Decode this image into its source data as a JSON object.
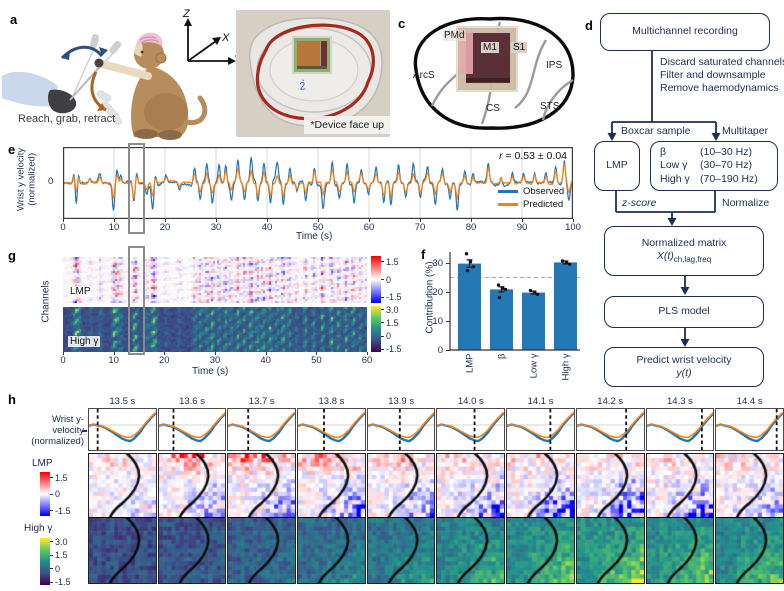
{
  "figure": {
    "panels": {
      "a": "a",
      "b": "b",
      "c": "c",
      "d": "d",
      "e": "e",
      "f": "f",
      "g": "g",
      "h": "h"
    }
  },
  "colors": {
    "observed": "#1f77b4",
    "predicted": "#ff7f0e",
    "bar": "#2478b4",
    "flowchart": "#1c2e52",
    "highlight": "#8c8c8c",
    "reference_line": "#aaaaaa",
    "error_bar": "#1a2440"
  },
  "panel_a": {
    "caption": "Reach, grab, retract",
    "axes": {
      "x": "X",
      "y": "Y",
      "z": "Z"
    }
  },
  "panel_b": {
    "caption": "*Device face up"
  },
  "panel_c": {
    "labels": {
      "pmd": "PMd",
      "m1": "M1",
      "s1": "S1",
      "arcs": "ArcS",
      "ips": "IPS",
      "cs": "CS",
      "sts": "STS"
    }
  },
  "flow": {
    "recording": "Multichannel recording",
    "steps": [
      "Discard saturated channels",
      "Filter and downsample",
      "Remove haemodynamics"
    ],
    "boxcar": "Boxcar sample",
    "multitaper": "Multitaper",
    "lmp": "LMP",
    "bands": [
      {
        "name": "β",
        "range": "(10–30 Hz)"
      },
      {
        "name": "Low γ",
        "range": "(30–70 Hz)"
      },
      {
        "name": "High γ",
        "range": "(70–190 Hz)"
      }
    ],
    "zscore": "z-score",
    "normalize": "Normalize",
    "matrix_line1": "Normalized matrix",
    "matrix_var": "X(t)",
    "matrix_sub": "ch,lag,freq",
    "pls": "PLS model",
    "predict_line1": "Predict wrist velocity",
    "predict_var": "y(t)"
  },
  "chart_data": [
    {
      "id": "e",
      "type": "line",
      "ylabel_lines": [
        "Wrist y velocity",
        "(normalized)"
      ],
      "xlabel": "Time (s)",
      "xlim": [
        0,
        100
      ],
      "xticks": [
        0,
        10,
        20,
        30,
        40,
        50,
        60,
        70,
        80,
        90,
        100
      ],
      "yticks": [
        0
      ],
      "ylim": [
        -1.9,
        1.9
      ],
      "grid": "vertical",
      "annotation_prefix": "r",
      "annotation_rest": " = 0.53 ± 0.04",
      "legend_position": "lower right inside",
      "series": [
        {
          "name": "Observed",
          "color": "#1f77b4"
        },
        {
          "name": "Predicted",
          "color": "#ff7f0e"
        }
      ],
      "highlight_window_s": [
        13.0,
        15.6
      ],
      "noise_seed": 42,
      "spikes": [
        [
          2.2,
          0.75,
          0.45
        ],
        [
          2.6,
          -1.3,
          -0.6
        ],
        [
          3.0,
          0.7,
          0.4
        ],
        [
          5.3,
          0.3,
          0.2
        ],
        [
          7.2,
          0.55,
          0.35
        ],
        [
          9.9,
          -1.55,
          -0.85
        ],
        [
          10.6,
          0.8,
          0.5
        ],
        [
          11.3,
          0.5,
          0.3
        ],
        [
          13.9,
          -1.25,
          -0.95
        ],
        [
          14.4,
          0.5,
          0.35
        ],
        [
          16.4,
          -0.6,
          -0.35
        ],
        [
          17.6,
          -1.45,
          -0.8
        ],
        [
          18.1,
          0.6,
          0.3
        ],
        [
          20.2,
          0.35,
          0.2
        ],
        [
          22.8,
          -0.4,
          -0.25
        ],
        [
          25.8,
          0.85,
          0.55
        ],
        [
          26.9,
          -0.9,
          -0.5
        ],
        [
          28.2,
          1.0,
          0.6
        ],
        [
          29.3,
          -1.15,
          -0.6
        ],
        [
          30.6,
          0.95,
          0.55
        ],
        [
          31.9,
          1.1,
          0.65
        ],
        [
          33.0,
          -0.85,
          -0.5
        ],
        [
          34.3,
          1.2,
          0.75
        ],
        [
          35.6,
          -1.0,
          -0.55
        ],
        [
          36.9,
          1.35,
          0.7
        ],
        [
          38.2,
          -1.2,
          -0.65
        ],
        [
          39.4,
          1.15,
          0.6
        ],
        [
          40.7,
          -1.3,
          -0.75
        ],
        [
          42.0,
          0.95,
          0.5
        ],
        [
          43.2,
          -1.35,
          -0.8
        ],
        [
          44.5,
          0.9,
          0.5
        ],
        [
          45.9,
          -0.55,
          -0.3
        ],
        [
          47.6,
          -1.05,
          -0.6
        ],
        [
          49.3,
          0.95,
          0.6
        ],
        [
          51.0,
          -1.25,
          -0.7
        ],
        [
          52.8,
          1.3,
          0.7
        ],
        [
          54.2,
          -0.95,
          -0.5
        ],
        [
          55.7,
          1.25,
          0.6
        ],
        [
          57.1,
          -1.1,
          -0.6
        ],
        [
          58.5,
          0.85,
          0.5
        ],
        [
          59.9,
          -0.7,
          -0.4
        ],
        [
          61.4,
          0.9,
          0.5
        ],
        [
          62.9,
          -1.2,
          -0.7
        ],
        [
          64.3,
          -1.4,
          -0.8
        ],
        [
          65.8,
          1.0,
          0.6
        ],
        [
          67.2,
          -0.85,
          -0.5
        ],
        [
          68.7,
          1.1,
          0.6
        ],
        [
          70.1,
          -1.0,
          -0.6
        ],
        [
          71.5,
          0.95,
          0.5
        ],
        [
          73.0,
          -1.3,
          -0.7
        ],
        [
          74.4,
          0.85,
          0.5
        ],
        [
          75.9,
          -0.9,
          -0.5
        ],
        [
          77.3,
          -1.5,
          -0.8
        ],
        [
          78.8,
          0.75,
          0.4
        ],
        [
          80.4,
          0.55,
          0.35
        ],
        [
          83.4,
          1.05,
          0.9
        ],
        [
          85.9,
          0.45,
          0.35
        ],
        [
          88.1,
          0.5,
          0.4
        ],
        [
          90.3,
          0.45,
          0.35
        ],
        [
          92.5,
          0.55,
          0.45
        ],
        [
          94.7,
          0.6,
          0.45
        ],
        [
          96.6,
          1.0,
          0.75
        ],
        [
          98.3,
          1.35,
          1.05
        ],
        [
          99.2,
          -0.95,
          -0.55
        ]
      ]
    },
    {
      "id": "f",
      "type": "bar",
      "ylabel": "Contribution (%)",
      "categories": [
        "LMP",
        "β",
        "Low γ",
        "High γ"
      ],
      "values": [
        29.8,
        20.9,
        19.8,
        30.2
      ],
      "errors": [
        1.3,
        0.9,
        0.5,
        0.5
      ],
      "points": [
        [
          33.2,
          30.4,
          28.7,
          27.4
        ],
        [
          22.4,
          21.3,
          20.9,
          18.1
        ],
        [
          20.5,
          19.9,
          19.2
        ],
        [
          30.7,
          30.1,
          29.6
        ]
      ],
      "point_jitter": [
        -3,
        1,
        4,
        -2
      ],
      "reference_line": 25,
      "yticks": [
        0,
        10,
        20,
        30
      ],
      "ylim": [
        0,
        34
      ]
    },
    {
      "id": "g",
      "type": "heatmap",
      "ylabel": "Channels",
      "xlabel": "Time (s)",
      "xlim": [
        0,
        60
      ],
      "xticks": [
        0,
        10,
        20,
        30,
        40,
        50,
        60
      ],
      "highlight_window_s": [
        13.0,
        15.6
      ],
      "rows": [
        {
          "label": "LMP",
          "colormap": "bwr",
          "seed": 7,
          "colorbar": {
            "range": [
              2,
              -2
            ],
            "ticks": [
              {
                "v": 1.5,
                "l": "1.5"
              },
              {
                "v": 0,
                "l": "0"
              },
              {
                "v": -1.5,
                "l": "-1.5"
              }
            ]
          }
        },
        {
          "label": "High γ",
          "colormap": "viridis",
          "seed": 13,
          "colorbar": {
            "range": [
              3.4,
              -1.8
            ],
            "ticks": [
              {
                "v": 3.0,
                "l": "3.0"
              },
              {
                "v": 1.5,
                "l": "1.5"
              },
              {
                "v": 0,
                "l": "0"
              },
              {
                "v": -1.5,
                "l": "-1.5"
              }
            ]
          }
        }
      ]
    },
    {
      "id": "h",
      "type": "heatmap-sequence",
      "times": [
        "13.5 s",
        "13.6 s",
        "13.7 s",
        "13.8 s",
        "13.9 s",
        "14.0 s",
        "14.1 s",
        "14.2 s",
        "14.3 s",
        "14.4 s"
      ],
      "trace_label_lines": [
        "Wrist y-",
        "velocity",
        "(normalized)"
      ],
      "cursor_fracs": [
        0.13,
        0.217,
        0.303,
        0.39,
        0.477,
        0.563,
        0.65,
        0.737,
        0.823,
        0.91
      ],
      "trace": {
        "x": [
          0,
          0.07,
          0.14,
          0.21,
          0.28,
          0.35,
          0.42,
          0.49,
          0.56,
          0.62,
          0.68,
          0.76,
          0.84,
          0.92,
          1
        ],
        "observed": [
          -0.05,
          0.03,
          -0.05,
          -0.12,
          -0.3,
          -0.5,
          -0.72,
          -0.95,
          -1.1,
          -1.15,
          -0.95,
          -0.55,
          0,
          0.45,
          0.85
        ],
        "predicted": [
          -0.02,
          0.01,
          -0.03,
          -0.1,
          -0.24,
          -0.42,
          -0.6,
          -0.78,
          -0.87,
          -0.88,
          -0.72,
          -0.38,
          0.1,
          0.52,
          0.9
        ]
      },
      "rows": [
        {
          "label": "LMP",
          "colormap": "bwr",
          "seed": 101,
          "colorbar": {
            "range": [
              2,
              -2
            ],
            "ticks": [
              {
                "v": 1.5,
                "l": "1.5"
              },
              {
                "v": 0,
                "l": "0"
              },
              {
                "v": -1.5,
                "l": "-1.5"
              }
            ]
          },
          "red_top_amp": [
            0.6,
            1.7,
            1.9,
            1.6,
            1.0,
            0.8,
            0.7,
            0.6,
            0.5,
            0.7
          ],
          "blue_amp": [
            0.35,
            0.9,
            1.1,
            1.3,
            1.0,
            1.5,
            1.7,
            1.8,
            1.5,
            0.9
          ]
        },
        {
          "label": "High γ",
          "colormap": "viridis",
          "seed": 202,
          "colorbar": {
            "range": [
              3.4,
              -1.8
            ],
            "ticks": [
              {
                "v": 3.0,
                "l": "3.0"
              },
              {
                "v": 1.5,
                "l": "1.5"
              },
              {
                "v": 0,
                "l": "0"
              },
              {
                "v": -1.5,
                "l": "-1.5"
              }
            ]
          },
          "base": [
            -0.55,
            -0.45,
            -0.25,
            -0.05,
            0.15,
            0.45,
            0.6,
            0.75,
            0.7,
            0.55
          ],
          "blob_amp": [
            0,
            0.3,
            0.6,
            0.9,
            1.3,
            1.9,
            2.3,
            2.6,
            2.4,
            2.0
          ]
        }
      ]
    }
  ]
}
